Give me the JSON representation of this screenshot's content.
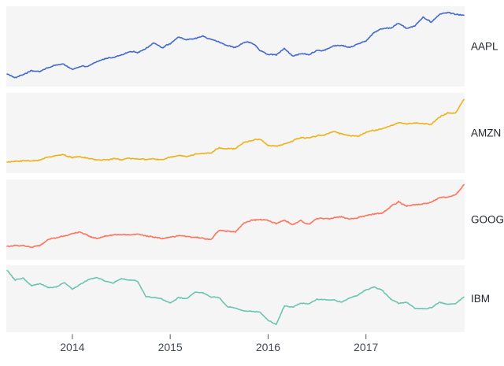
{
  "chart_data": {
    "type": "line",
    "layout": "small-multiples",
    "facet": "4 stacked panels, one per stock symbol, shared x time axis, no y axis labels",
    "panel_background": "#f5f5f5",
    "axis_text_color": "#434a54",
    "tick_color": "#545b66",
    "series_label_color": "#23272d",
    "x": {
      "start": "2013-05",
      "interval": "month",
      "tick_years": [
        2014,
        2015,
        2016,
        2017
      ],
      "tick_labels": [
        "2014",
        "2015",
        "2016",
        "2017"
      ],
      "grid": false,
      "legend": "right-margin labels per panel"
    },
    "series": [
      {
        "symbol": "AAPL",
        "color": "#4269d0",
        "ylim": [
          49,
          176
        ],
        "values": [
          63,
          56,
          62,
          69,
          68,
          74,
          79,
          80,
          71,
          75,
          77,
          84,
          90,
          93,
          96,
          102,
          101,
          108,
          119,
          110,
          117,
          128,
          124,
          125,
          130,
          125,
          121,
          113,
          110,
          119,
          118,
          105,
          97,
          97,
          109,
          94,
          100,
          96,
          104,
          106,
          113,
          114,
          110,
          116,
          121,
          137,
          144,
          144,
          153,
          144,
          149,
          164,
          154,
          169,
          172,
          169,
          167
        ]
      },
      {
        "symbol": "AMZN",
        "color": "#efb118",
        "ylim": [
          150,
          1470
        ],
        "values": [
          265,
          277,
          300,
          280,
          310,
          360,
          390,
          398,
          358,
          362,
          335,
          305,
          310,
          325,
          310,
          340,
          322,
          305,
          335,
          310,
          355,
          380,
          372,
          420,
          430,
          435,
          535,
          515,
          510,
          625,
          665,
          690,
          585,
          555,
          595,
          660,
          720,
          715,
          760,
          770,
          835,
          790,
          750,
          750,
          825,
          845,
          885,
          925,
          995,
          970,
          990,
          980,
          960,
          1100,
          1175,
          1170,
          1420
        ]
      },
      {
        "symbol": "GOOG",
        "color": "#ff725c",
        "ylim": [
          330,
          1185
        ],
        "values": [
          435,
          440,
          444,
          423,
          438,
          515,
          530,
          560,
          590,
          607,
          557,
          527,
          560,
          577,
          571,
          571,
          577,
          555,
          540,
          525,
          535,
          558,
          548,
          537,
          532,
          520,
          625,
          618,
          608,
          710,
          742,
          759,
          743,
          698,
          745,
          693,
          735,
          692,
          768,
          769,
          777,
          785,
          758,
          772,
          796,
          823,
          830,
          905,
          965,
          909,
          930,
          940,
          960,
          1020,
          1022,
          1046,
          1170
        ]
      },
      {
        "symbol": "IBM",
        "color": "#6cc5b0",
        "ylim": [
          112,
          210
        ],
        "values": [
          208,
          191,
          195,
          182,
          185,
          179,
          180,
          188,
          176,
          185,
          192,
          196,
          190,
          186,
          194,
          192,
          190,
          164,
          162,
          160,
          153,
          162,
          160,
          171,
          170,
          163,
          162,
          147,
          145,
          140,
          139,
          138,
          124,
          117,
          148,
          146,
          153,
          152,
          160,
          159,
          158,
          154,
          162,
          166,
          175,
          180,
          175,
          160,
          152,
          155,
          144,
          143,
          145,
          154,
          151,
          152,
          163
        ]
      }
    ]
  }
}
